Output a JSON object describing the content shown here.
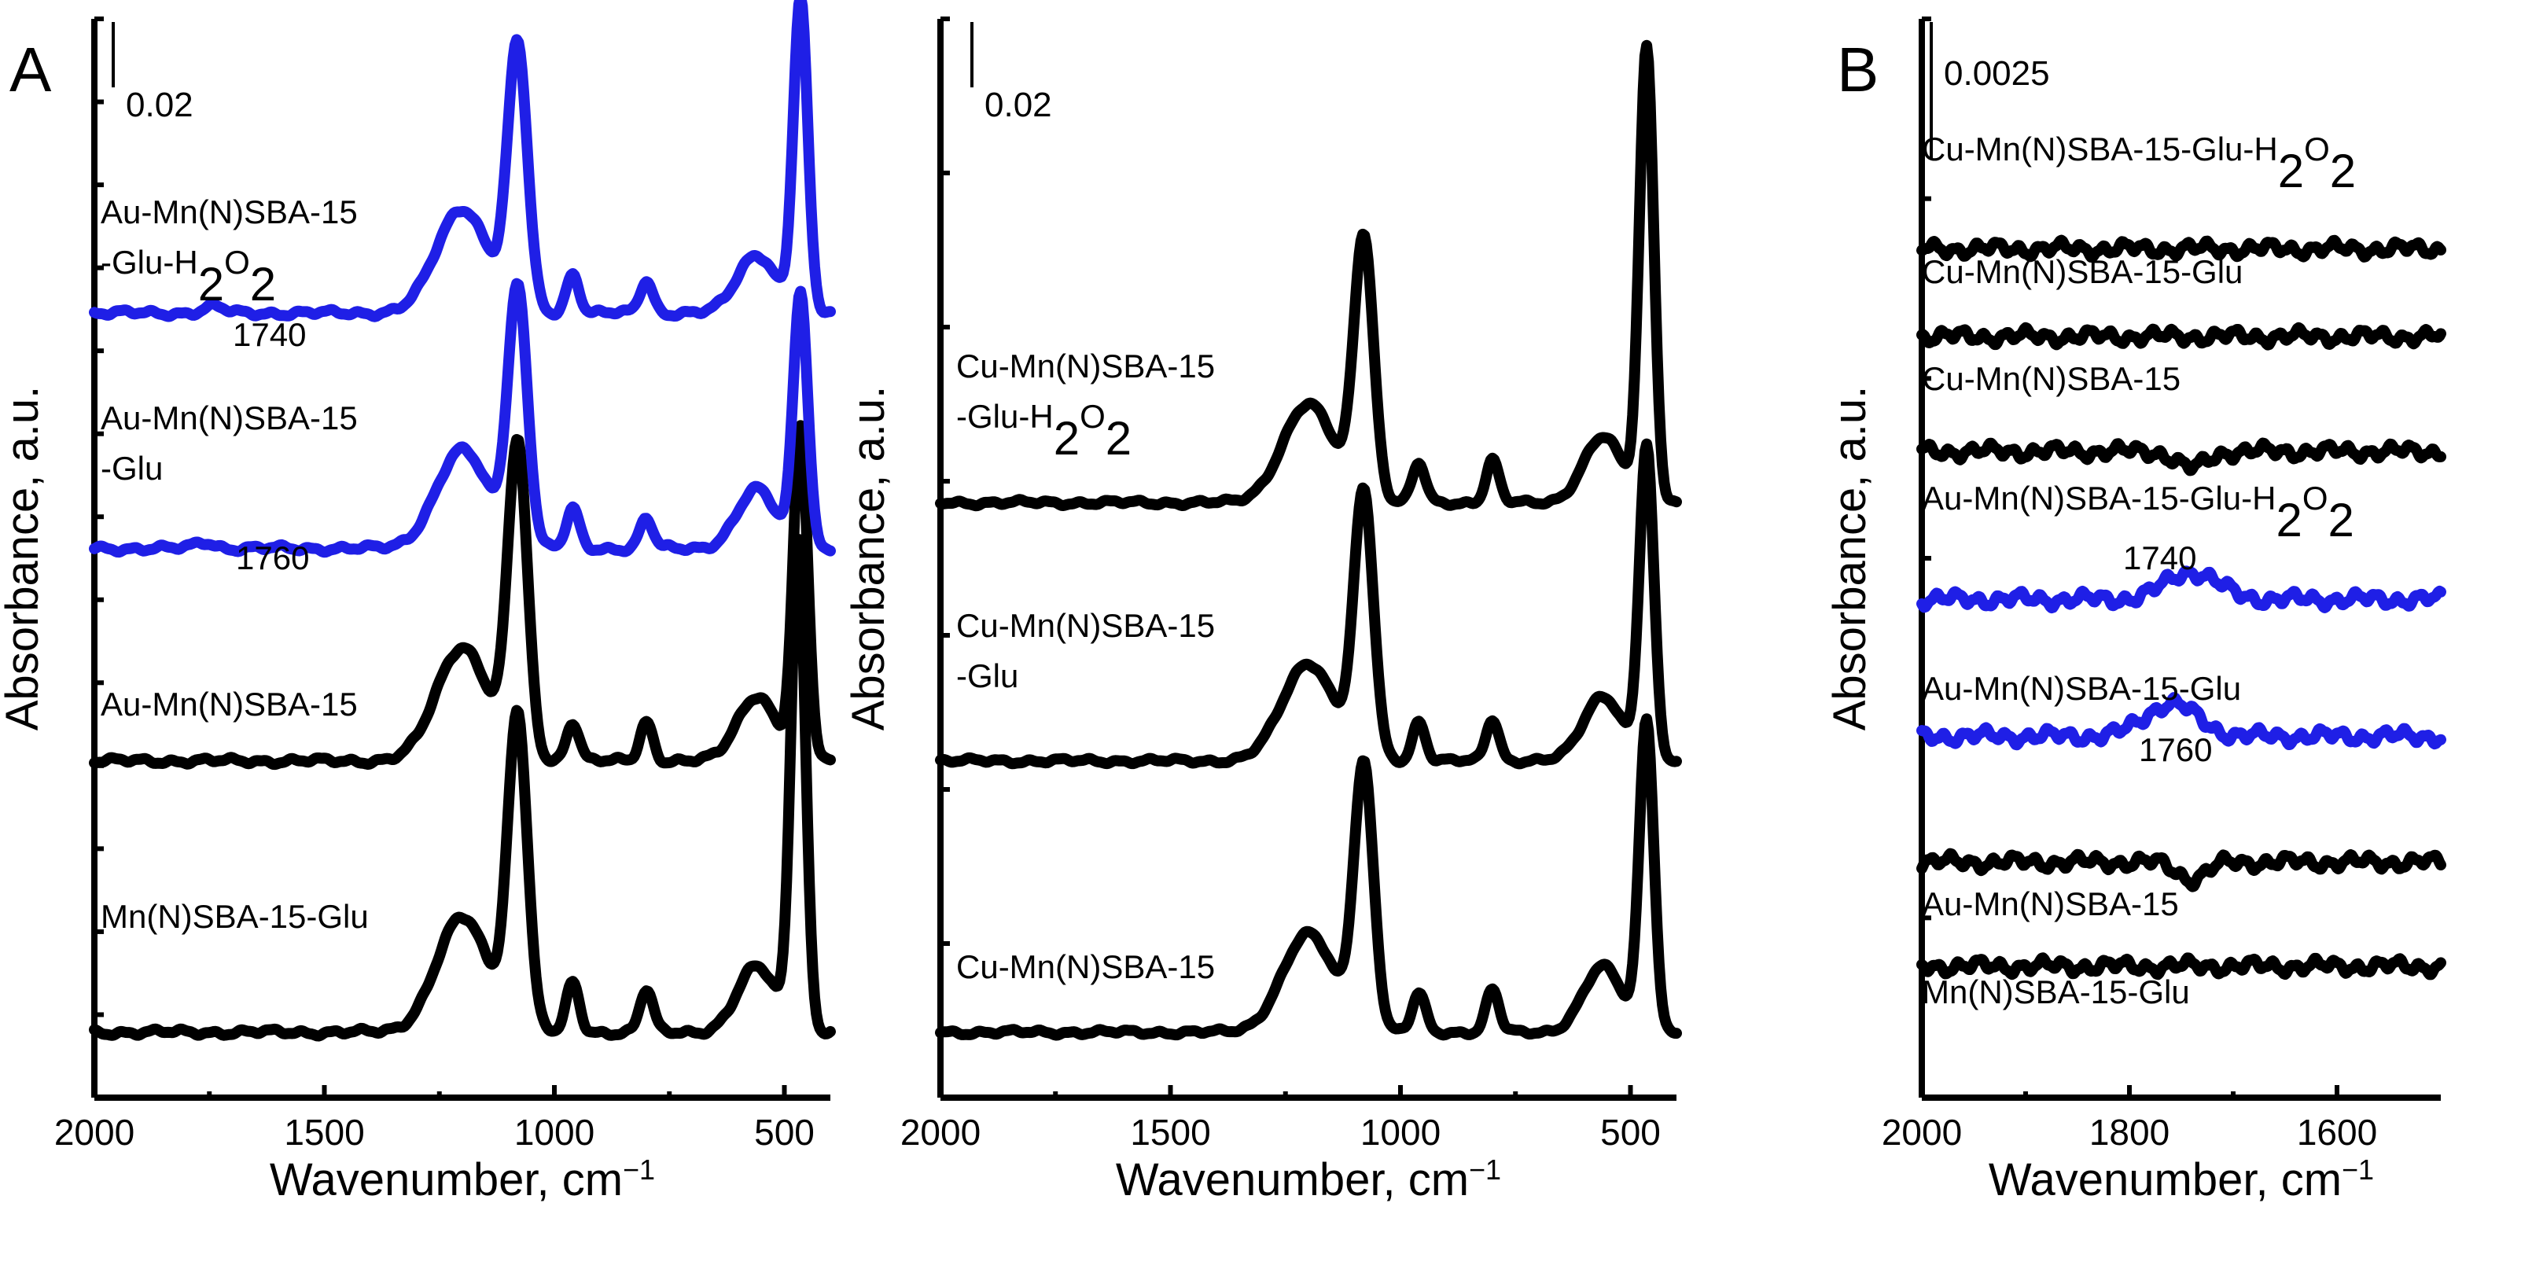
{
  "colors": {
    "black": "#000000",
    "blue": "#1f1fe6"
  },
  "chart_data": [
    {
      "type": "line",
      "panel_letter": "A",
      "xlabel": "Wavenumber, cm",
      "xlabel_sup": "−1",
      "ylabel": "Absorbance, a.u.",
      "xlim": [
        2000,
        400
      ],
      "xticks": [
        "2000",
        "1500",
        "1000",
        "500"
      ],
      "xtick_values": [
        2000,
        1500,
        1000,
        500
      ],
      "ylim": [
        -0.02,
        0.31
      ],
      "scale_bar": {
        "value": 0.02,
        "label": "0.02"
      },
      "series": [
        {
          "name": "Mn(N)SBA-15-Glu",
          "color": "black",
          "baseline": 0.0,
          "peaks": [
            [
              1080,
              0.095,
              30
            ],
            [
              1200,
              0.035,
              80
            ],
            [
              960,
              0.015,
              20
            ],
            [
              800,
              0.013,
              20
            ],
            [
              560,
              0.02,
              60
            ],
            [
              470,
              0.15,
              22
            ]
          ]
        },
        {
          "name": "Au-Mn(N)SBA-15",
          "color": "black",
          "baseline": 0.083,
          "peaks": [
            [
              1080,
              0.095,
              30
            ],
            [
              1200,
              0.035,
              80
            ],
            [
              960,
              0.012,
              20
            ],
            [
              800,
              0.012,
              20
            ],
            [
              560,
              0.02,
              60
            ],
            [
              465,
              0.1,
              22
            ]
          ]
        },
        {
          "name": "Au-Mn(N)SBA-15-Glu",
          "name_lines": [
            "Au-Mn(N)SBA-15",
            "-Glu"
          ],
          "annotation": "1760",
          "color": "blue",
          "baseline": 0.148,
          "peaks": [
            [
              1080,
              0.078,
              30
            ],
            [
              1200,
              0.03,
              80
            ],
            [
              960,
              0.012,
              20
            ],
            [
              800,
              0.009,
              20
            ],
            [
              560,
              0.018,
              60
            ],
            [
              465,
              0.078,
              22
            ],
            [
              1760,
              0.002,
              30
            ]
          ]
        },
        {
          "name": "Au-Mn(N)SBA-15-Glu-H2O2",
          "name_lines": [
            "Au-Mn(N)SBA-15",
            "-Glu-H2O2"
          ],
          "annotation": "1740",
          "color": "blue",
          "baseline": 0.22,
          "peaks": [
            [
              1080,
              0.08,
              30
            ],
            [
              1200,
              0.032,
              80
            ],
            [
              960,
              0.012,
              20
            ],
            [
              800,
              0.01,
              20
            ],
            [
              560,
              0.018,
              60
            ],
            [
              465,
              0.095,
              22
            ],
            [
              1740,
              0.002,
              30
            ]
          ]
        }
      ]
    },
    {
      "type": "line",
      "panel_letter": "",
      "xlabel": "Wavenumber, cm",
      "xlabel_sup": "−1",
      "ylabel": "Absorbance, a.u.",
      "xlim": [
        2000,
        400
      ],
      "xticks": [
        "2000",
        "1500",
        "1000",
        "500"
      ],
      "xtick_values": [
        2000,
        1500,
        1000,
        500
      ],
      "ylim": [
        -0.02,
        0.31
      ],
      "scale_bar": {
        "value": 0.02,
        "label": "0.02"
      },
      "series": [
        {
          "name": "Cu-Mn(N)SBA-15",
          "color": "black",
          "baseline": 0.0,
          "peaks": [
            [
              1080,
              0.08,
              30
            ],
            [
              1200,
              0.03,
              80
            ],
            [
              960,
              0.012,
              20
            ],
            [
              800,
              0.013,
              20
            ],
            [
              560,
              0.02,
              60
            ],
            [
              465,
              0.095,
              22
            ]
          ]
        },
        {
          "name": "Cu-Mn(N)SBA-15-Glu",
          "name_lines": [
            "Cu-Mn(N)SBA-15",
            "-Glu"
          ],
          "color": "black",
          "baseline": 0.083,
          "peaks": [
            [
              1080,
              0.08,
              30
            ],
            [
              1200,
              0.03,
              80
            ],
            [
              960,
              0.012,
              20
            ],
            [
              800,
              0.013,
              20
            ],
            [
              560,
              0.02,
              60
            ],
            [
              465,
              0.095,
              22
            ]
          ]
        },
        {
          "name": "Cu-Mn(N)SBA-15-Glu-H2O2",
          "name_lines": [
            "Cu-Mn(N)SBA-15",
            "-Glu-H2O2"
          ],
          "color": "black",
          "baseline": 0.162,
          "peaks": [
            [
              1080,
              0.08,
              30
            ],
            [
              1200,
              0.03,
              80
            ],
            [
              960,
              0.012,
              20
            ],
            [
              800,
              0.013,
              20
            ],
            [
              560,
              0.02,
              60
            ],
            [
              465,
              0.138,
              22
            ]
          ]
        }
      ]
    },
    {
      "type": "line",
      "panel_letter": "B",
      "xlabel": "Wavenumber, cm",
      "xlabel_sup": "−1",
      "ylabel": "Absorbance, a.u.",
      "xlim": [
        2000,
        1500
      ],
      "xticks": [
        "2000",
        "1800",
        "1600"
      ],
      "xtick_values": [
        2000,
        1800,
        1600
      ],
      "ylim": [
        -0.0024,
        0.0173
      ],
      "scale_bar": {
        "value": 0.0025,
        "label": "0.0025"
      },
      "series": [
        {
          "name": "Mn(N)SBA-15-Glu",
          "color": "black",
          "baseline": 0.0,
          "peaks": []
        },
        {
          "name": "Au-Mn(N)SBA-15",
          "color": "black",
          "baseline": 0.0019,
          "peaks": [
            [
              1740,
              -0.0003,
              20
            ]
          ]
        },
        {
          "name": "Au-Mn(N)SBA-15-Glu",
          "annotation": "1760",
          "color": "blue",
          "baseline": 0.0042,
          "peaks": [
            [
              1760,
              0.0006,
              35
            ]
          ]
        },
        {
          "name": "Au-Mn(N)SBA-15-Glu-H2O2",
          "annotation": "1740",
          "color": "blue",
          "baseline": 0.0067,
          "peaks": [
            [
              1740,
              0.0005,
              35
            ]
          ]
        },
        {
          "name": "Cu-Mn(N)SBA-15",
          "color": "black",
          "baseline": 0.0094,
          "peaks": [
            [
              1740,
              -0.0003,
              20
            ]
          ]
        },
        {
          "name": "Cu-Mn(N)SBA-15-Glu",
          "color": "black",
          "baseline": 0.0115,
          "peaks": []
        },
        {
          "name": "Cu-Mn(N)SBA-15-Glu-H2O2",
          "color": "black",
          "baseline": 0.0131,
          "peaks": []
        }
      ]
    }
  ]
}
